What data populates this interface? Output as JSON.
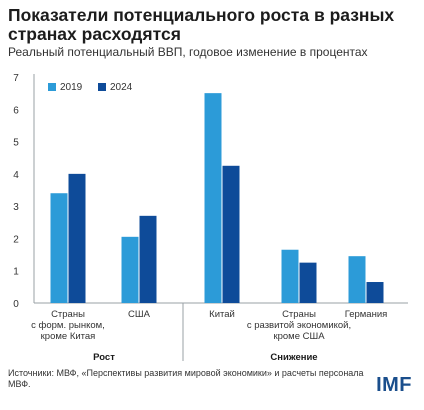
{
  "title": "Показатели потенциального роста в разных странах расходятся",
  "subtitle": "Реальный потенциальный ВВП, годовое изменение в процентах",
  "source": "Источники: МВФ, «Перспективы развития мировой экономики» и расчеты персонала МВФ.",
  "brand": "IMF",
  "colors": {
    "s2019": "#2c9bd8",
    "s2024": "#0e4b99",
    "axis": "#9aa0a6",
    "text": "#333333"
  },
  "chart_data": {
    "type": "bar",
    "categories": [
      [
        "Страны",
        "с форм. рынком,",
        "кроме Китая"
      ],
      [
        "США"
      ],
      [
        "Китай"
      ],
      [
        "Страны",
        "с развитой экономикой,",
        "кроме США"
      ],
      [
        "Германия"
      ]
    ],
    "series": [
      {
        "name": "2019",
        "values": [
          3.4,
          2.05,
          6.5,
          1.65,
          1.45
        ]
      },
      {
        "name": "2024",
        "values": [
          4.0,
          2.7,
          4.25,
          1.25,
          0.65
        ]
      }
    ],
    "ylim": [
      0,
      7
    ],
    "yticks": [
      "0",
      "1",
      "2",
      "3",
      "4",
      "5",
      "6",
      "7"
    ],
    "groups": [
      {
        "label": "Рост",
        "categories": [
          0,
          1
        ]
      },
      {
        "label": "Снижение",
        "categories": [
          2,
          3,
          4
        ]
      }
    ],
    "legend": "top-left",
    "grid": false
  }
}
